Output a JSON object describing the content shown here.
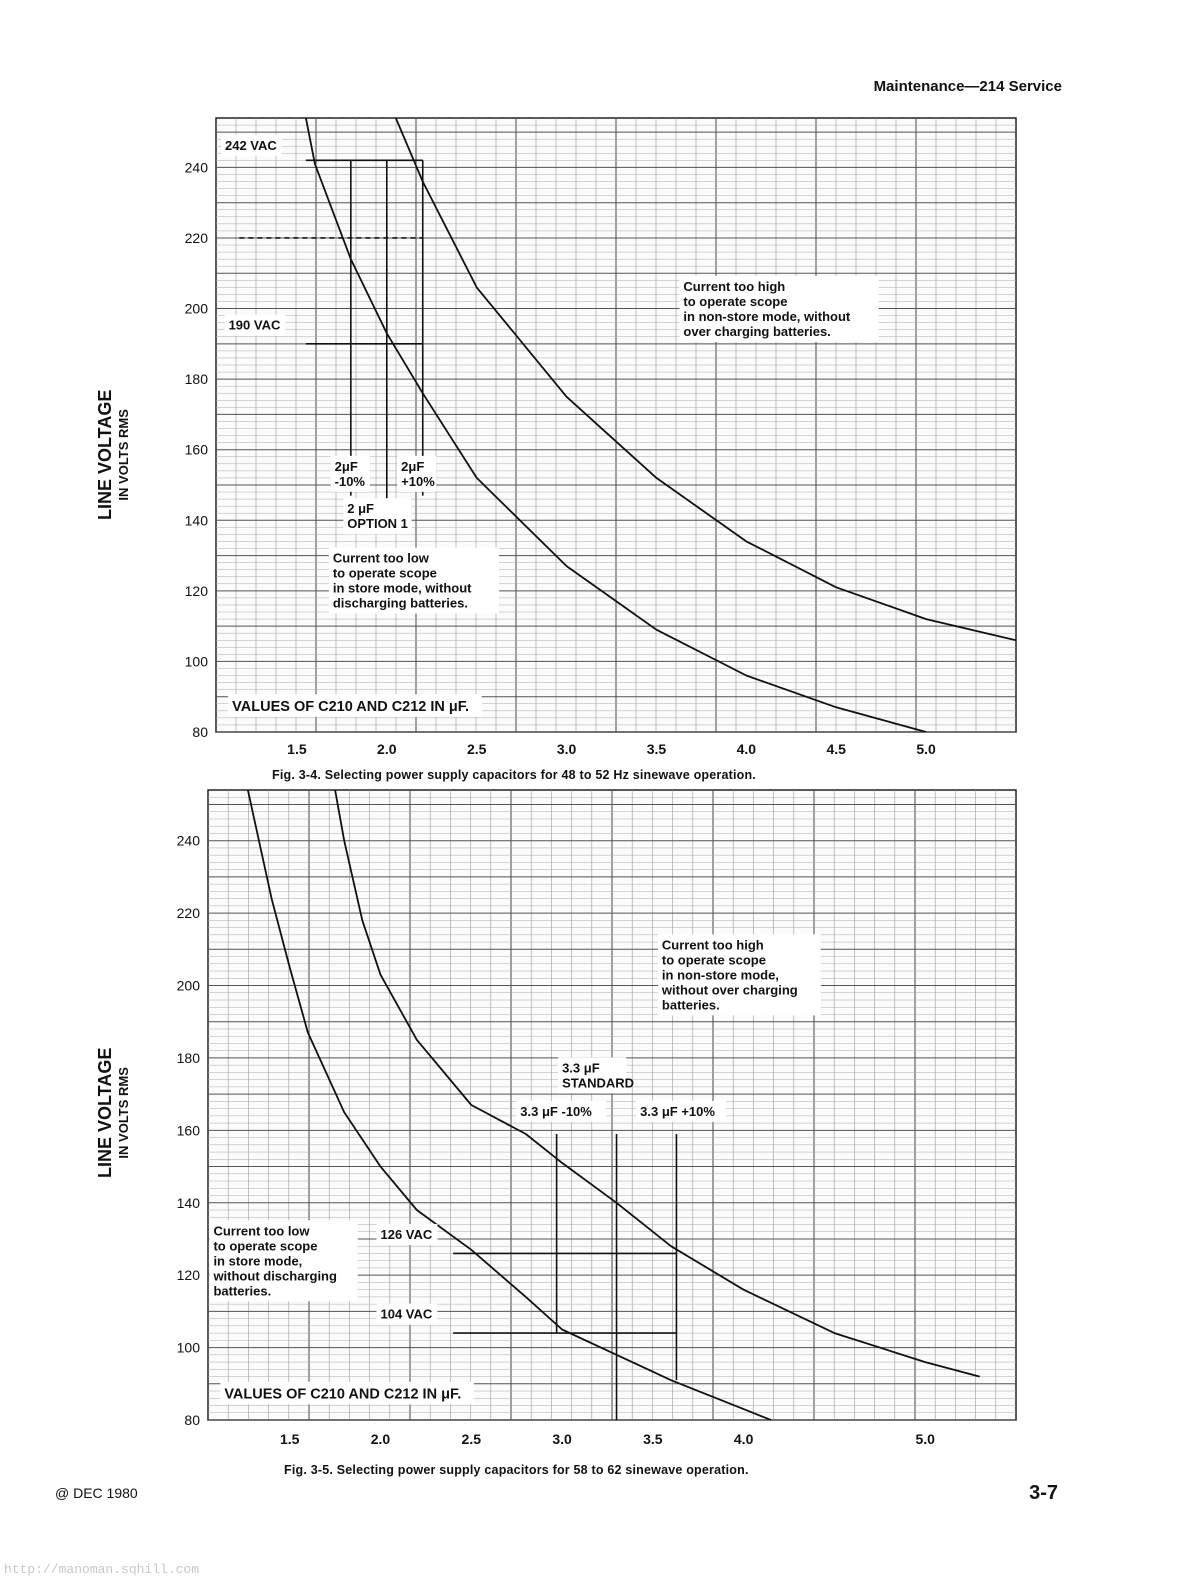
{
  "header": {
    "title": "Maintenance—214 Service"
  },
  "footer": {
    "date": "@ DEC 1980",
    "page": "3-7",
    "watermark": "http://manoman.sqhill.com"
  },
  "chart_data": [
    {
      "id": "fig-3-4",
      "type": "line",
      "caption": "Fig. 3-4. Selecting power supply capacitors for 48 to 52 Hz sinewave operation.",
      "ylabel": "LINE VOLTAGE",
      "ylabel_sub": "IN VOLTS RMS",
      "xlabel": "VALUES OF C210 AND C212 IN μF.",
      "xlim": [
        1.05,
        5.5
      ],
      "ylim": [
        80,
        254
      ],
      "grid": true,
      "x_ticks": [
        "1.5",
        "2.0",
        "2.5",
        "3.0",
        "3.5",
        "4.0",
        "4.5",
        "5.0"
      ],
      "y_ticks": [
        "80",
        "100",
        "120",
        "140",
        "160",
        "180",
        "200",
        "220",
        "240"
      ],
      "series": [
        {
          "role": "lower",
          "x": [
            1.55,
            1.6,
            1.8,
            2.0,
            2.2,
            2.5,
            3.0,
            3.5,
            4.0,
            4.5,
            5.0
          ],
          "y": [
            254,
            241,
            214,
            193,
            176,
            152,
            127,
            109,
            96,
            87,
            80
          ]
        },
        {
          "role": "upper",
          "x": [
            2.05,
            2.2,
            2.5,
            3.0,
            3.5,
            4.0,
            4.5,
            5.0,
            5.5
          ],
          "y": [
            254,
            236,
            206,
            175,
            152,
            134,
            121,
            112,
            106
          ]
        }
      ],
      "refs": [
        {
          "kind": "h",
          "y": 242,
          "x1": 1.55,
          "x2": 2.2,
          "dash": false
        },
        {
          "kind": "h",
          "y": 220,
          "x1": 1.18,
          "x2": 2.2,
          "dash": true
        },
        {
          "kind": "h",
          "y": 190,
          "x1": 1.55,
          "x2": 2.2,
          "dash": false
        },
        {
          "kind": "v",
          "x": 1.8,
          "y1": 147,
          "y2": 242
        },
        {
          "kind": "v",
          "x": 2.0,
          "y1": 137,
          "y2": 242
        },
        {
          "kind": "v",
          "x": 2.2,
          "y1": 147,
          "y2": 242
        }
      ],
      "annotations": [
        {
          "lines": [
            "242 VAC"
          ],
          "anchor": [
            1.1,
            245
          ]
        },
        {
          "lines": [
            "190 VAC"
          ],
          "anchor": [
            1.12,
            194
          ]
        },
        {
          "lines": [
            "2μF",
            "-10%"
          ],
          "anchor": [
            1.71,
            154
          ]
        },
        {
          "lines": [
            "2μF",
            "+10%"
          ],
          "anchor": [
            2.08,
            154
          ]
        },
        {
          "lines": [
            "2 μF",
            "OPTION 1"
          ],
          "anchor": [
            1.78,
            142
          ]
        },
        {
          "lines": [
            "Current too high",
            "to operate scope",
            "in non-store mode, without",
            "over charging batteries."
          ],
          "anchor": [
            3.65,
            205
          ]
        },
        {
          "lines": [
            "Current too low",
            "to operate scope",
            "in store mode, without",
            "discharging batteries."
          ],
          "anchor": [
            1.7,
            128
          ]
        },
        {
          "lines": [
            "VALUES OF C210 AND C212 IN μF."
          ],
          "anchor": [
            1.14,
            86
          ],
          "big": true
        }
      ]
    },
    {
      "id": "fig-3-5",
      "type": "line",
      "caption": "Fig. 3-5. Selecting power supply capacitors for 58 to 62 sinewave operation.",
      "ylabel": "LINE VOLTAGE",
      "ylabel_sub": "IN VOLTS RMS",
      "xlabel": "VALUES OF C210 AND C212 IN μF.",
      "xlim": [
        1.05,
        5.5
      ],
      "ylim": [
        80,
        254
      ],
      "grid": true,
      "x_ticks": [
        "1.5",
        "2.0",
        "2.5",
        "3.0",
        "3.5",
        "4.0",
        "5.0"
      ],
      "y_ticks": [
        "80",
        "100",
        "120",
        "140",
        "160",
        "180",
        "200",
        "220",
        "240"
      ],
      "series": [
        {
          "role": "lower",
          "x": [
            1.27,
            1.3,
            1.4,
            1.5,
            1.6,
            1.8,
            2.0,
            2.2,
            2.5,
            2.8,
            3.0,
            3.3,
            3.6,
            4.0,
            4.15
          ],
          "y": [
            254,
            247,
            224,
            205,
            187,
            165,
            150,
            138,
            127,
            114,
            105,
            98,
            91,
            83,
            80
          ]
        },
        {
          "role": "upper",
          "x": [
            1.75,
            1.8,
            1.9,
            2.0,
            2.2,
            2.5,
            2.8,
            3.0,
            3.3,
            3.6,
            4.0,
            4.5,
            5.0,
            5.3
          ],
          "y": [
            254,
            240,
            218,
            203,
            185,
            167,
            159,
            151,
            140,
            128,
            116,
            104,
            96,
            92
          ]
        }
      ],
      "refs": [
        {
          "kind": "h",
          "y": 126,
          "x1": 2.4,
          "x2": 3.63,
          "dash": false
        },
        {
          "kind": "h",
          "y": 104,
          "x1": 2.4,
          "x2": 3.63,
          "dash": false
        },
        {
          "kind": "v",
          "x": 2.97,
          "y1": 104,
          "y2": 159
        },
        {
          "kind": "v",
          "x": 3.3,
          "y1": 80,
          "y2": 159
        },
        {
          "kind": "v",
          "x": 3.63,
          "y1": 91,
          "y2": 159
        }
      ],
      "annotations": [
        {
          "lines": [
            "3.3 μF",
            "STANDARD"
          ],
          "anchor": [
            3.0,
            176
          ]
        },
        {
          "lines": [
            "3.3 μF -10%"
          ],
          "anchor": [
            2.77,
            164
          ]
        },
        {
          "lines": [
            "3.3 μF +10%"
          ],
          "anchor": [
            3.43,
            164
          ]
        },
        {
          "lines": [
            "Current too high",
            "to operate scope",
            "in non-store mode,",
            "without over charging",
            "batteries."
          ],
          "anchor": [
            3.55,
            210
          ]
        },
        {
          "lines": [
            "Current too low",
            "to operate scope",
            "in store mode,",
            "without discharging",
            "batteries."
          ],
          "anchor": [
            1.08,
            131
          ]
        },
        {
          "lines": [
            "126 VAC"
          ],
          "anchor": [
            2.0,
            130
          ]
        },
        {
          "lines": [
            "104 VAC"
          ],
          "anchor": [
            2.0,
            108
          ]
        },
        {
          "lines": [
            "VALUES OF C210 AND C212 IN μF."
          ],
          "anchor": [
            1.14,
            86
          ],
          "big": true
        }
      ]
    }
  ]
}
